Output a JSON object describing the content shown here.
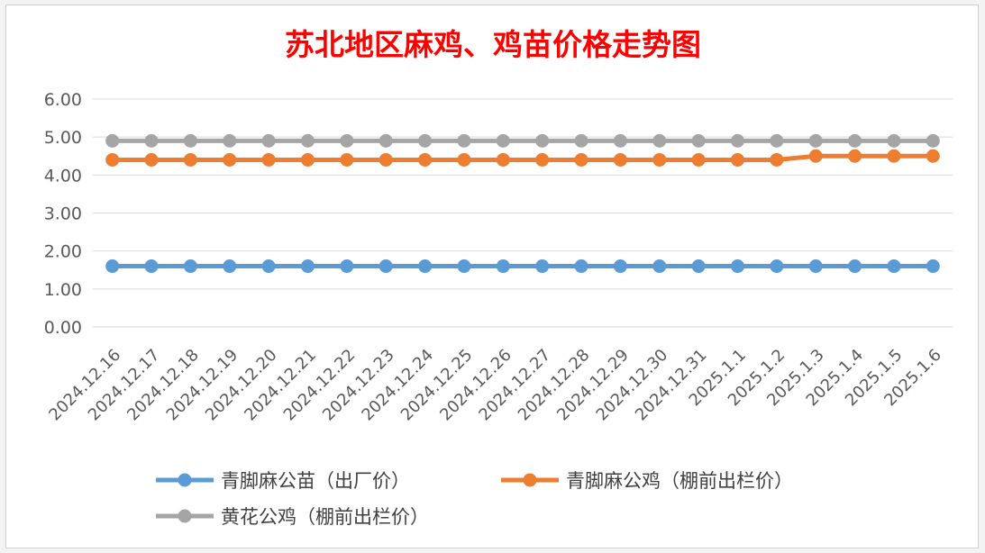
{
  "chart_data": {
    "type": "line",
    "title": "苏北地区麻鸡、鸡苗价格走势图",
    "title_color": "#ff0000",
    "categories": [
      "2024.12.16",
      "2024.12.17",
      "2024.12.18",
      "2024.12.19",
      "2024.12.20",
      "2024.12.21",
      "2024.12.22",
      "2024.12.23",
      "2024.12.24",
      "2024.12.25",
      "2024.12.26",
      "2024.12.27",
      "2024.12.28",
      "2024.12.29",
      "2024.12.30",
      "2024.12.31",
      "2025.1.1",
      "2025.1.2",
      "2025.1.3",
      "2025.1.4",
      "2025.1.5",
      "2025.1.6"
    ],
    "y_ticks": [
      "0.00",
      "1.00",
      "2.00",
      "3.00",
      "4.00",
      "5.00",
      "6.00"
    ],
    "ylim": [
      0,
      6
    ],
    "grid": true,
    "legend_position": "bottom",
    "series": [
      {
        "name": "青脚麻公苗（出厂价）",
        "color": "#5b9bd5",
        "values": [
          1.6,
          1.6,
          1.6,
          1.6,
          1.6,
          1.6,
          1.6,
          1.6,
          1.6,
          1.6,
          1.6,
          1.6,
          1.6,
          1.6,
          1.6,
          1.6,
          1.6,
          1.6,
          1.6,
          1.6,
          1.6,
          1.6
        ]
      },
      {
        "name": "青脚麻公鸡（棚前出栏价）",
        "color": "#ed7d31",
        "values": [
          4.4,
          4.4,
          4.4,
          4.4,
          4.4,
          4.4,
          4.4,
          4.4,
          4.4,
          4.4,
          4.4,
          4.4,
          4.4,
          4.4,
          4.4,
          4.4,
          4.4,
          4.4,
          4.5,
          4.5,
          4.5,
          4.5
        ]
      },
      {
        "name": "黄花公鸡（棚前出栏价）",
        "color": "#a5a5a5",
        "values": [
          4.9,
          4.9,
          4.9,
          4.9,
          4.9,
          4.9,
          4.9,
          4.9,
          4.9,
          4.9,
          4.9,
          4.9,
          4.9,
          4.9,
          4.9,
          4.9,
          4.9,
          4.9,
          4.9,
          4.9,
          4.9,
          4.9
        ]
      }
    ]
  }
}
